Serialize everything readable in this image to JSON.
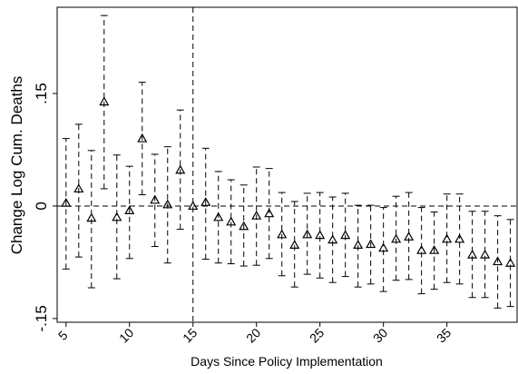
{
  "chart_data": {
    "type": "errorbar",
    "x_label": "Days Since Policy Implementation",
    "y_label": "Change Log Cum. Deaths",
    "x": [
      5,
      6,
      7,
      8,
      9,
      10,
      11,
      12,
      13,
      14,
      15,
      16,
      17,
      18,
      19,
      20,
      21,
      22,
      23,
      24,
      25,
      26,
      27,
      28,
      29,
      30,
      31,
      32,
      33,
      34,
      35,
      36,
      37,
      38,
      39,
      40
    ],
    "series": [
      {
        "color": "#000000",
        "values": [
          0.004,
          0.023,
          -0.016,
          0.139,
          -0.015,
          -0.006,
          0.09,
          0.008,
          0.002,
          0.048,
          0,
          0.005,
          -0.015,
          -0.021,
          -0.027,
          -0.013,
          -0.01,
          -0.038,
          -0.052,
          -0.038,
          -0.039,
          -0.045,
          -0.039,
          -0.052,
          -0.051,
          -0.056,
          -0.044,
          -0.041,
          -0.059,
          -0.059,
          -0.044,
          -0.044,
          -0.065,
          -0.065,
          -0.074,
          -0.076
        ],
        "lower": [
          -0.084,
          -0.068,
          -0.109,
          0.023,
          -0.097,
          -0.07,
          0.015,
          -0.054,
          -0.076,
          -0.031,
          null,
          -0.071,
          -0.076,
          -0.077,
          -0.08,
          -0.079,
          -0.07,
          -0.093,
          -0.108,
          -0.091,
          -0.096,
          -0.102,
          -0.094,
          -0.108,
          -0.104,
          -0.114,
          -0.099,
          -0.098,
          -0.117,
          -0.111,
          -0.102,
          -0.104,
          -0.122,
          -0.122,
          -0.136,
          -0.134
        ],
        "upper": [
          0.09,
          0.109,
          0.074,
          0.254,
          0.068,
          0.053,
          0.165,
          0.069,
          0.079,
          0.128,
          null,
          0.077,
          0.046,
          0.035,
          0.028,
          0.052,
          0.05,
          0.018,
          0.006,
          0.017,
          0.018,
          0.012,
          0.017,
          0.001,
          0.001,
          -0.002,
          0.013,
          0.018,
          -0.002,
          -0.008,
          0.016,
          0.016,
          -0.007,
          -0.007,
          -0.013,
          -0.018
        ]
      }
    ],
    "xlim": [
      4.3,
      40.6
    ],
    "xticks": [
      5,
      10,
      15,
      20,
      25,
      30,
      35
    ],
    "ylim": [
      -0.155,
      0.265
    ],
    "yticks": [
      {
        "value": -0.15,
        "label": "-.15"
      },
      0,
      {
        "value": 0.15,
        "label": ".15"
      }
    ],
    "hline": 0,
    "vline": 15
  }
}
